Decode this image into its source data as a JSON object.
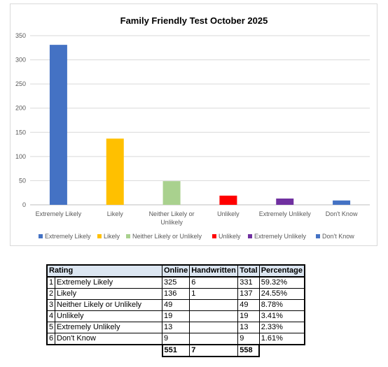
{
  "chart_data": {
    "type": "bar",
    "title": "Family Friendly Test October 2025",
    "categories": [
      "Extremely Likely",
      "Likely",
      "Neither Likely or Unlikely",
      "Unlikely",
      "Extremely Unlikely",
      "Don't Know"
    ],
    "values": [
      331,
      137,
      49,
      19,
      13,
      9
    ],
    "colors": [
      "#4472c4",
      "#ffc000",
      "#a9d18e",
      "#ff0000",
      "#7030a0",
      "#4472c4"
    ],
    "ylim": [
      0,
      350
    ],
    "yticks": [
      0,
      50,
      100,
      150,
      200,
      250,
      300,
      350
    ],
    "grid": true,
    "legend": "bottom"
  },
  "table": {
    "headers": {
      "rating": "Rating",
      "online": "Online",
      "handwritten": "Handwritten",
      "total": "Total",
      "percentage": "Percentage"
    },
    "rows": [
      {
        "idx": "1",
        "rating": "Extremely Likely",
        "online": "325",
        "handwritten": "6",
        "total": "331",
        "percentage": "59.32%"
      },
      {
        "idx": "2",
        "rating": "Likely",
        "online": "136",
        "handwritten": "1",
        "total": "137",
        "percentage": "24.55%"
      },
      {
        "idx": "3",
        "rating": "Neither Likely or Unlikely",
        "online": "49",
        "handwritten": "",
        "total": "49",
        "percentage": "8.78%"
      },
      {
        "idx": "4",
        "rating": "Unlikely",
        "online": "19",
        "handwritten": "",
        "total": "19",
        "percentage": "3.41%"
      },
      {
        "idx": "5",
        "rating": "Extremely Unlikely",
        "online": "13",
        "handwritten": "",
        "total": "13",
        "percentage": "2.33%"
      },
      {
        "idx": "6",
        "rating": "Don't Know",
        "online": "9",
        "handwritten": "",
        "total": "9",
        "percentage": "1.61%"
      }
    ],
    "totals": {
      "online": "551",
      "handwritten": "7",
      "total": "558"
    }
  }
}
